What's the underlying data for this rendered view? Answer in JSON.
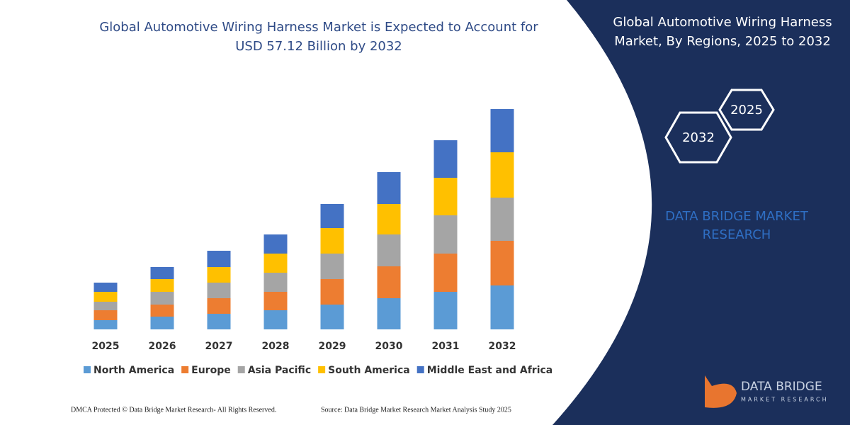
{
  "chart_data": {
    "type": "stacked_bar",
    "title": "Global Automotive Wiring Harness Market is Expected to Account for USD 57.12 Billion by 2032",
    "categories": [
      "2025",
      "2026",
      "2027",
      "2028",
      "2029",
      "2030",
      "2031",
      "2032"
    ],
    "series": [
      {
        "name": "North America",
        "color": "#5b9bd5",
        "values": [
          13,
          18,
          22,
          27,
          35,
          44,
          53,
          62
        ]
      },
      {
        "name": "Europe",
        "color": "#ed7d31",
        "values": [
          14,
          17,
          22,
          26,
          36,
          45,
          54,
          63
        ]
      },
      {
        "name": "Asia Pacific",
        "color": "#a5a5a5",
        "values": [
          12,
          18,
          22,
          27,
          36,
          45,
          54,
          61
        ]
      },
      {
        "name": "South America",
        "color": "#ffc000",
        "values": [
          14,
          18,
          22,
          27,
          36,
          43,
          53,
          64
        ]
      },
      {
        "name": "Middle East and Africa",
        "color": "#4472c4",
        "values": [
          13,
          17,
          23,
          27,
          34,
          45,
          53,
          61
        ]
      }
    ],
    "ylim": [
      0,
      320
    ],
    "legend": "bottom"
  },
  "panel": {
    "title": "Global Automotive Wiring Harness Market, By Regions, 2025 to 2032",
    "hexagons": [
      "2032",
      "2025"
    ],
    "brand": "DATA BRIDGE MARKET RESEARCH",
    "logo": {
      "name": "DATA BRIDGE",
      "tagline": "MARKET RESEARCH"
    }
  },
  "footer": {
    "copyright": "DMCA Protected © Data Bridge Market Research-  All Rights Reserved.",
    "source": "Source: Data Bridge Market Research  Market Analysis Study 2025"
  }
}
